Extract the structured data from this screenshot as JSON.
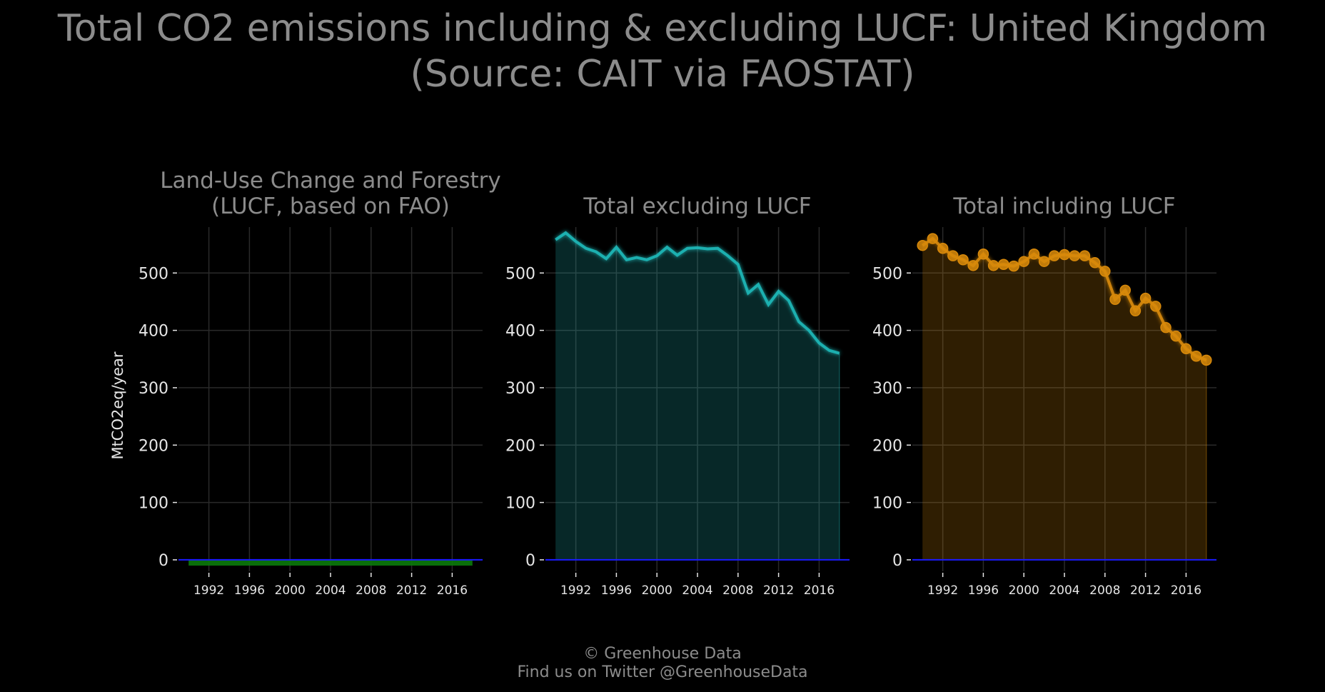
{
  "title_line1": "Total CO2 emissions including & excluding LUCF: United Kingdom",
  "title_line2": "(Source: CAIT via FAOSTAT)",
  "ylabel": "MtCO2eq/year",
  "credit_line1": "© Greenhouse Data",
  "credit_line2": "Find us on Twitter @GreenhouseData",
  "colors": {
    "background": "#000000",
    "grid": "#2a2a2a",
    "text_light": "#e6e6e6",
    "text_muted": "#8c8c8c",
    "zero_line": "#1a1aff",
    "lucf": "#0b7a0b",
    "excl": "#1fb8b8",
    "incl": "#d8890a"
  },
  "chart_data": [
    {
      "type": "area",
      "title": "Land-Use Change and Forestry\n(LUCF, based on FAO)",
      "ylabel": "MtCO2eq/year",
      "xlim": [
        1989,
        2019
      ],
      "ylim": [
        -20,
        580
      ],
      "x_ticks": [
        1992,
        1996,
        2000,
        2004,
        2008,
        2012,
        2016
      ],
      "y_ticks": [
        0,
        100,
        200,
        300,
        400,
        500
      ],
      "x": [
        1990,
        1991,
        1992,
        1993,
        1994,
        1995,
        1996,
        1997,
        1998,
        1999,
        2000,
        2001,
        2002,
        2003,
        2004,
        2005,
        2006,
        2007,
        2008,
        2009,
        2010,
        2011,
        2012,
        2013,
        2014,
        2015,
        2016,
        2017,
        2018
      ],
      "series": [
        {
          "values": [
            -10,
            -10,
            -10,
            -10,
            -10,
            -10,
            -10,
            -10,
            -10,
            -10,
            -10,
            -10,
            -10,
            -10,
            -10,
            -10,
            -10,
            -10,
            -10,
            -10,
            -10,
            -10,
            -10,
            -10,
            -10,
            -10,
            -10,
            -10,
            -10
          ],
          "color": "#0b7a0b"
        }
      ],
      "markers": false,
      "grid": true
    },
    {
      "type": "area",
      "title": "Total excluding LUCF",
      "xlim": [
        1989,
        2019
      ],
      "ylim": [
        -20,
        580
      ],
      "x_ticks": [
        1992,
        1996,
        2000,
        2004,
        2008,
        2012,
        2016
      ],
      "y_ticks": [
        0,
        100,
        200,
        300,
        400,
        500
      ],
      "x": [
        1990,
        1991,
        1992,
        1993,
        1994,
        1995,
        1996,
        1997,
        1998,
        1999,
        2000,
        2001,
        2002,
        2003,
        2004,
        2005,
        2006,
        2007,
        2008,
        2009,
        2010,
        2011,
        2012,
        2013,
        2014,
        2015,
        2016,
        2017,
        2018
      ],
      "series": [
        {
          "values": [
            558,
            570,
            555,
            543,
            537,
            525,
            545,
            523,
            527,
            523,
            530,
            545,
            531,
            543,
            544,
            542,
            543,
            530,
            515,
            465,
            480,
            445,
            468,
            452,
            415,
            400,
            378,
            365,
            360
          ],
          "color": "#1fb8b8"
        }
      ],
      "markers": false,
      "grid": true
    },
    {
      "type": "area",
      "title": "Total including LUCF",
      "xlim": [
        1989,
        2019
      ],
      "ylim": [
        -20,
        580
      ],
      "x_ticks": [
        1992,
        1996,
        2000,
        2004,
        2008,
        2012,
        2016
      ],
      "y_ticks": [
        0,
        100,
        200,
        300,
        400,
        500
      ],
      "x": [
        1990,
        1991,
        1992,
        1993,
        1994,
        1995,
        1996,
        1997,
        1998,
        1999,
        2000,
        2001,
        2002,
        2003,
        2004,
        2005,
        2006,
        2007,
        2008,
        2009,
        2010,
        2011,
        2012,
        2013,
        2014,
        2015,
        2016,
        2017,
        2018
      ],
      "series": [
        {
          "values": [
            548,
            560,
            543,
            530,
            523,
            513,
            533,
            513,
            515,
            512,
            520,
            533,
            520,
            530,
            532,
            530,
            530,
            518,
            503,
            454,
            470,
            434,
            456,
            442,
            405,
            390,
            368,
            355,
            348
          ],
          "color": "#d8890a"
        }
      ],
      "markers": true,
      "grid": true
    }
  ]
}
